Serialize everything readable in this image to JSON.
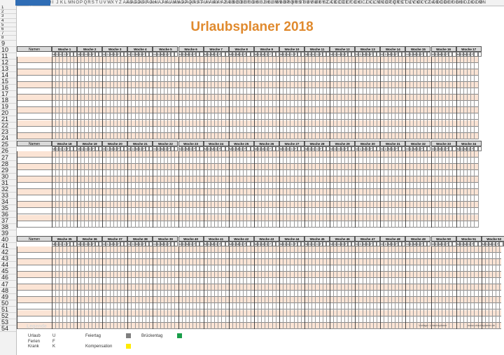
{
  "title": "Urlaubsplaner 2018",
  "name_header": "Namen",
  "row_numbers": [
    "1",
    "2",
    "3",
    "4",
    "5",
    "6",
    "7",
    "8",
    "9",
    "10",
    "11",
    "12",
    "13",
    "14",
    "15",
    "16",
    "17",
    "18",
    "19",
    "20",
    "21",
    "22",
    "23",
    "24",
    "25",
    "26",
    "27",
    "28",
    "29",
    "30",
    "31",
    "32",
    "33",
    "34",
    "35",
    "36",
    "37",
    "38",
    "39",
    "40",
    "41",
    "42",
    "43",
    "44",
    "45",
    "46",
    "47",
    "48",
    "49",
    "50",
    "51",
    "52",
    "53",
    "54"
  ],
  "column_letters": [
    "A",
    "B",
    "C",
    "D",
    "E",
    "F",
    "G",
    "H",
    "I",
    "J",
    "K",
    "L",
    "M",
    "N",
    "O",
    "P",
    "Q",
    "R",
    "S",
    "T",
    "U",
    "V",
    "W",
    "X",
    "Y",
    "Z",
    "AA",
    "AB",
    "AC",
    "AD",
    "AE",
    "AF",
    "AG",
    "AH",
    "AI",
    "AJ",
    "AK",
    "AL",
    "AM",
    "AN",
    "AO",
    "AP",
    "AQ",
    "AR",
    "AS",
    "AT",
    "AU",
    "AV",
    "AW",
    "AX",
    "AY",
    "AZ",
    "BA",
    "BB",
    "BC",
    "BD",
    "BE",
    "BF",
    "BG",
    "BH",
    "BI",
    "BJ",
    "BK",
    "BL",
    "BM",
    "BN",
    "BO",
    "BP",
    "BQ",
    "BR",
    "BS",
    "BT",
    "BU",
    "BV",
    "BW",
    "BX",
    "BY",
    "BZ",
    "CA",
    "CB",
    "CC",
    "CD",
    "CE",
    "CF",
    "CG",
    "CH",
    "CI",
    "CJ",
    "CK",
    "CL",
    "CM",
    "CN",
    "CO",
    "CP",
    "CQ",
    "CR",
    "CS",
    "CT",
    "CU",
    "CV",
    "CW",
    "CX",
    "CY",
    "CZ",
    "DA",
    "DB",
    "DC",
    "DD",
    "DE",
    "DF",
    "DG",
    "DH",
    "DI",
    "DJ",
    "DK",
    "DL",
    "DM",
    "DN",
    "DO",
    "DP",
    "DQ",
    "DR"
  ],
  "selected_cell": "A1",
  "day_letters": [
    "M",
    "D",
    "M",
    "D",
    "F"
  ],
  "blocks": [
    {
      "weeks": [
        "Woche 1",
        "Woche 2",
        "Woche 3",
        "Woche 4",
        "Woche 5",
        "Woche 6",
        "Woche 7",
        "Woche 8",
        "Woche 9",
        "Woche 10",
        "Woche 11",
        "Woche 12",
        "Woche 13",
        "Woche 14",
        "Woche 15",
        "Woche 16",
        "Woche 17"
      ]
    },
    {
      "weeks": [
        "Woche 18",
        "Woche 19",
        "Woche 20",
        "Woche 21",
        "Woche 22",
        "Woche 23",
        "Woche 24",
        "Woche 25",
        "Woche 26",
        "Woche 27",
        "Woche 28",
        "Woche 29",
        "Woche 30",
        "Woche 31",
        "Woche 32",
        "Woche 33",
        "Woche 34"
      ]
    },
    {
      "weeks": [
        "Woche 35",
        "Woche 36",
        "Woche 37",
        "Woche 38",
        "Woche 39",
        "Woche 40",
        "Woche 41",
        "Woche 42",
        "Woche 43",
        "Woche 44",
        "Woche 45",
        "Woche 46",
        "Woche 47",
        "Woche 48",
        "Woche 49",
        "Woche 50",
        "Woche 51",
        "Woche 52"
      ]
    }
  ],
  "legend": {
    "title": "Legende",
    "items": [
      {
        "label": "Urlaub",
        "symbol": "U"
      },
      {
        "label": "Ferien",
        "symbol": "F"
      },
      {
        "label": "Krank",
        "symbol": "K"
      }
    ],
    "feiertag_label": "Feiertag",
    "feiertag_color": "#7f7f7f",
    "brueckentag_label": "Brückentag",
    "brueckentag_color": "#1a9e4a",
    "kompensation_label": "Kompensation",
    "kompensation_color": "#ffeb00"
  },
  "footer": {
    "left": "Vorlage: Urlaubsplaner",
    "right": "www.urlaubsplaner.de"
  },
  "colors": {
    "title": "#e08a2e",
    "band": "#fbe4d5",
    "header_fill": "#d9d9d9"
  }
}
